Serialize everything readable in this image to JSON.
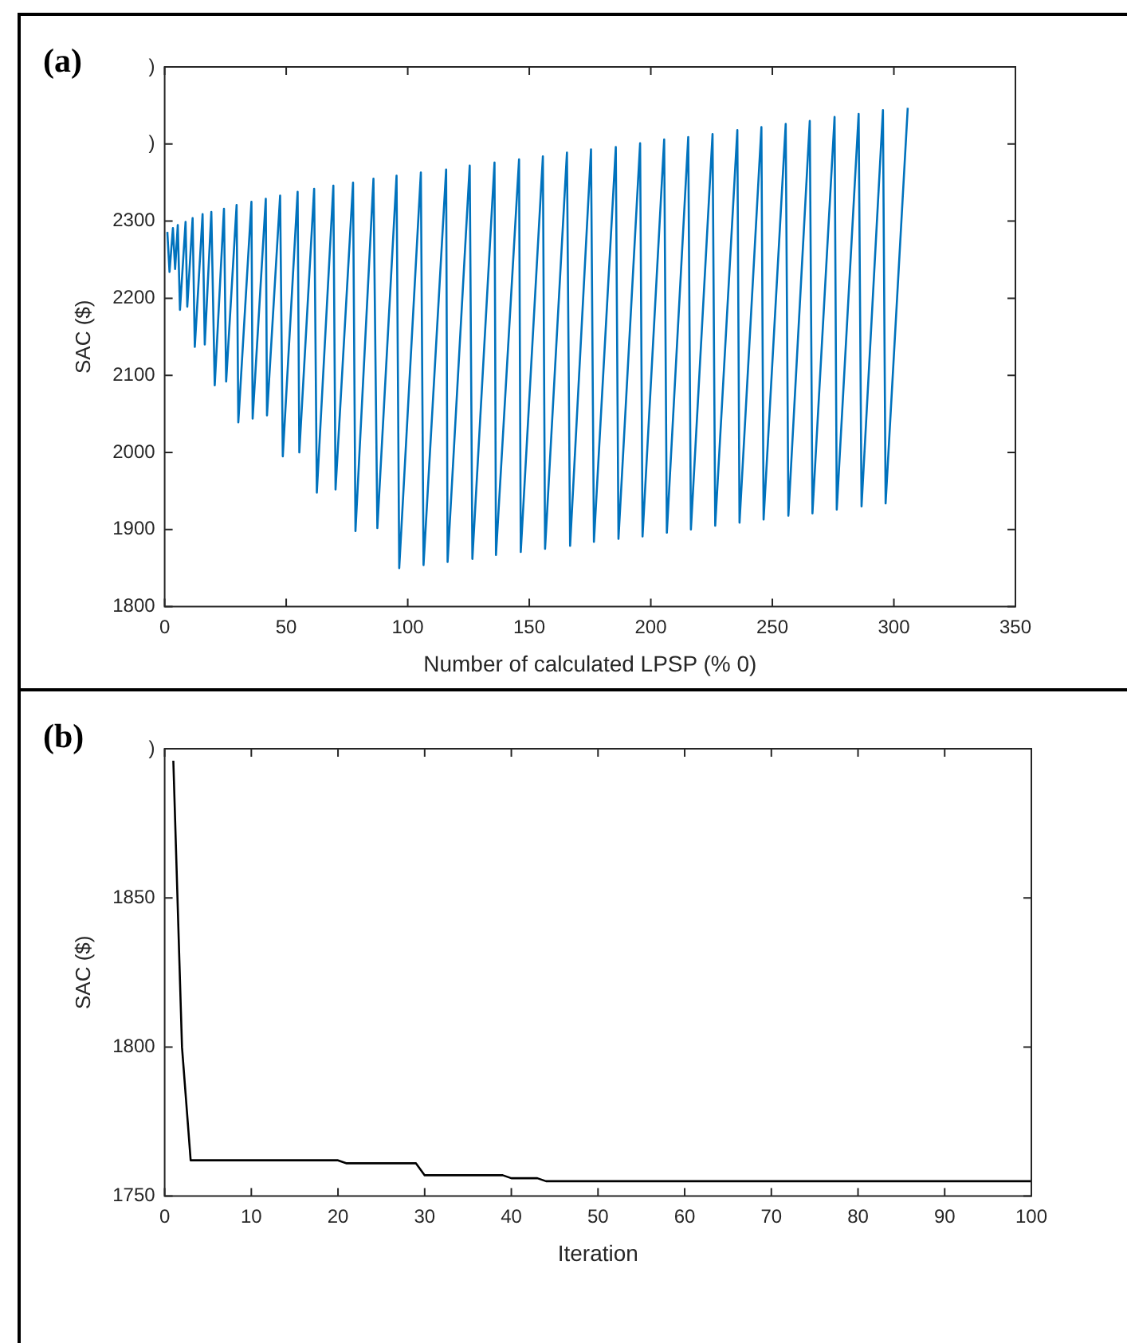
{
  "chart_data": [
    {
      "type": "line",
      "title": "(a)",
      "xlabel": "Number of calculated LPSP (% 0)",
      "ylabel": "SAC ($)",
      "xlim": [
        0,
        350
      ],
      "xticks": [
        0,
        50,
        100,
        150,
        200,
        250,
        300,
        350
      ],
      "ylim": [
        1800,
        2500
      ],
      "yticks": [
        1800,
        1900,
        2000,
        2100,
        2200,
        2300,
        {
          "value": 2400,
          "label": ")"
        },
        {
          "value": 2500,
          "label": ")"
        }
      ],
      "legend": false,
      "marker": "none",
      "line_style": "solid",
      "series": [
        {
          "color": "#0072bd",
          "x": [
            1.1,
            2.0,
            3.4,
            4.3,
            5.4,
            6.3,
            8.6,
            9.3,
            11.5,
            12.4,
            15.6,
            16.5,
            19.2,
            20.6,
            24.4,
            25.3,
            29.6,
            30.3,
            35.7,
            36.2,
            41.6,
            42.1,
            47.5,
            48.6,
            54.7,
            55.4,
            61.5,
            62.6,
            69.4,
            70.3,
            77.5,
            78.5,
            85.9,
            87.5,
            95.4,
            96.5,
            105.4,
            106.5,
            115.8,
            116.4,
            125.5,
            126.6,
            135.7,
            136.3,
            145.8,
            146.5,
            155.6,
            156.5,
            165.5,
            166.8,
            175.4,
            176.6,
            185.6,
            186.7,
            195.6,
            196.6,
            205.5,
            206.6,
            215.4,
            216.5,
            225.4,
            226.5,
            235.6,
            236.5,
            245.5,
            246.4,
            255.5,
            256.6,
            265.4,
            266.5,
            275.6,
            276.5,
            285.5,
            286.7,
            295.5,
            296.6,
            305.7
          ],
          "values": [
            2286,
            2234,
            2291,
            2238,
            2295,
            2185,
            2299,
            2189,
            2304,
            2137,
            2309,
            2140,
            2312,
            2087,
            2316,
            2092,
            2321,
            2039,
            2325,
            2044,
            2329,
            2048,
            2333,
            1995,
            2338,
            2000,
            2342,
            1948,
            2346,
            1952,
            2350,
            1898,
            2355,
            1902,
            2359,
            1850,
            2363,
            1854,
            2367,
            1858,
            2372,
            1862,
            2376,
            1867,
            2380,
            1871,
            2384,
            1875,
            2389,
            1879,
            2393,
            1884,
            2396,
            1888,
            2401,
            1891,
            2406,
            1896,
            2409,
            1900,
            2413,
            1905,
            2418,
            1909,
            2422,
            1913,
            2426,
            1918,
            2430,
            1921,
            2435,
            1926,
            2439,
            1930,
            2444,
            1934,
            2447
          ]
        }
      ]
    },
    {
      "type": "line",
      "title": "(b)",
      "xlabel": "Iteration",
      "ylabel": "SAC ($)",
      "xlim": [
        0,
        100
      ],
      "xticks": [
        0,
        10,
        20,
        30,
        40,
        50,
        60,
        70,
        80,
        90,
        100
      ],
      "ylim": [
        1750,
        1900
      ],
      "yticks": [
        1750,
        1800,
        1850,
        {
          "value": 1900,
          "label": ")"
        }
      ],
      "legend": false,
      "marker": "none",
      "line_style": "solid",
      "series": [
        {
          "color": "#000000",
          "x": [
            1,
            2,
            3,
            20,
            21,
            29,
            30,
            39,
            40,
            43,
            44,
            100
          ],
          "values": [
            1896,
            1800,
            1762,
            1762,
            1761,
            1761,
            1757,
            1757,
            1756,
            1756,
            1755,
            1755
          ]
        }
      ]
    }
  ]
}
